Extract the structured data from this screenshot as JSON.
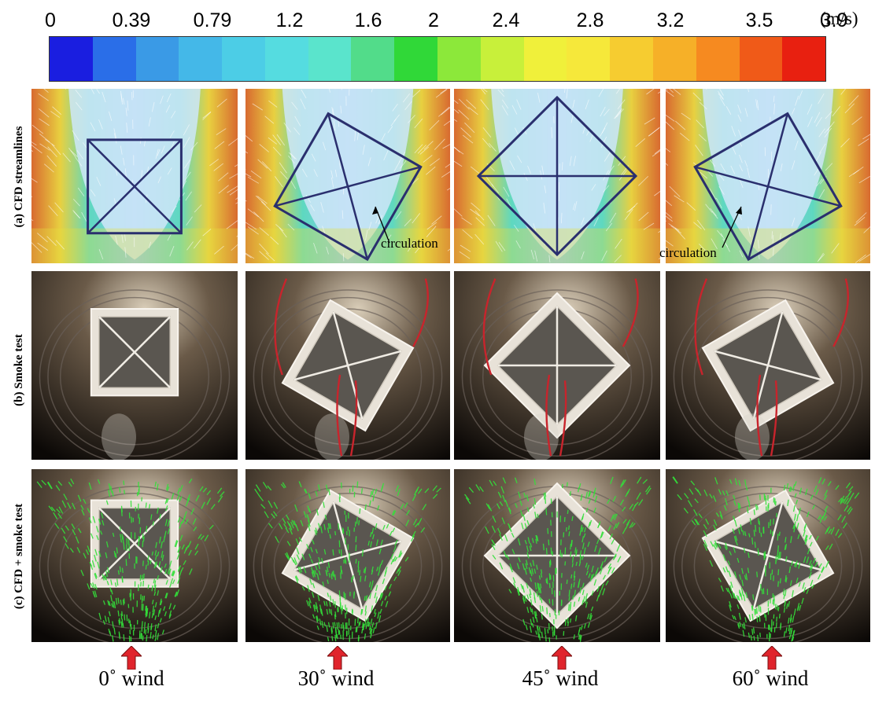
{
  "colorbar": {
    "ticks": [
      "0",
      "0.39",
      "0.79",
      "1.2",
      "1.6",
      "2",
      "2.4",
      "2.8",
      "3.2",
      "3.5",
      "3.9"
    ],
    "unit": "(m/s)",
    "colors": [
      "#1a1ee0",
      "#2a6ee8",
      "#3a9ae6",
      "#44b8e8",
      "#4ccde6",
      "#55dce0",
      "#5ae4cc",
      "#52dc8a",
      "#30d838",
      "#8ce83a",
      "#c8f03a",
      "#f0f03a",
      "#f6e83a",
      "#f6cc30",
      "#f6b028",
      "#f68a20",
      "#f05a18",
      "#e82010"
    ]
  },
  "rows": [
    {
      "label": "(a) CFD streamlines"
    },
    {
      "label": "(b) Smoke test"
    },
    {
      "label": "(c) CFD + smoke test"
    }
  ],
  "annotations": [
    "circulation",
    "circulation"
  ],
  "wind_labels": [
    "0˚ wind",
    "30˚ wind",
    "45˚ wind",
    "60˚ wind"
  ],
  "colors": {
    "smoke_arrow": "#c8242c",
    "vector": "#33e03a",
    "wind_arrow": "#e0242c",
    "frame": "#2a2f6e"
  }
}
